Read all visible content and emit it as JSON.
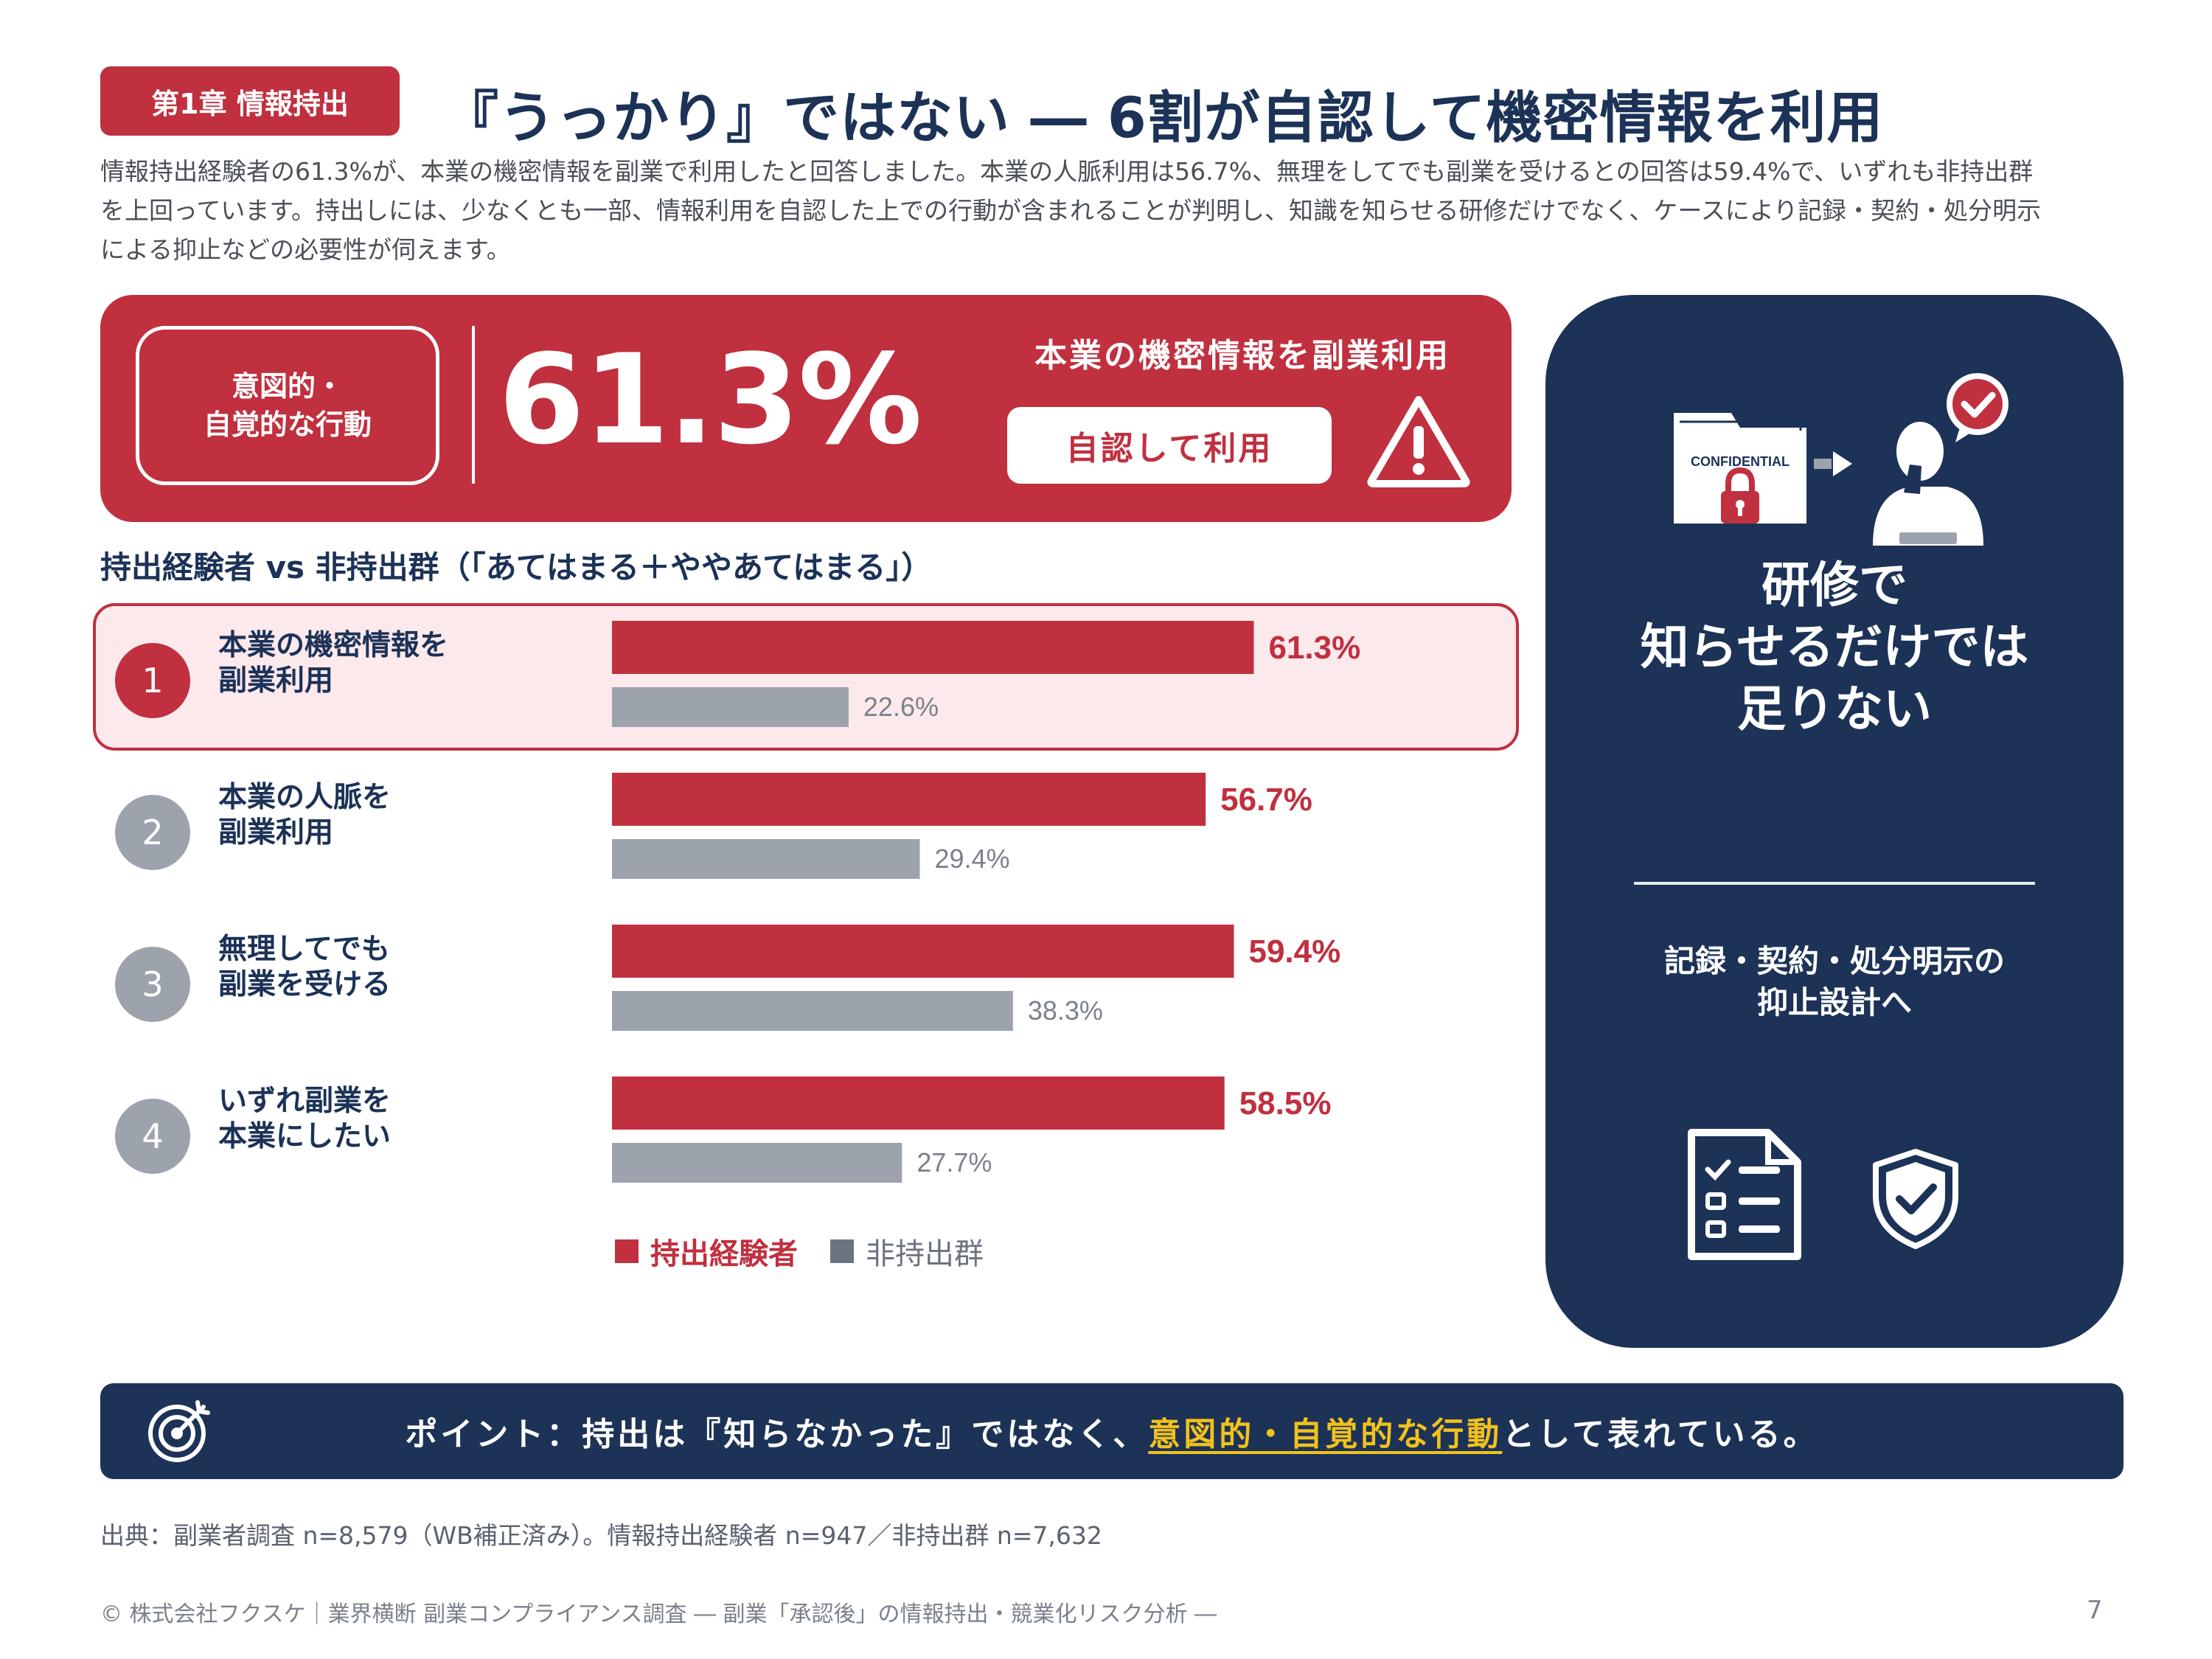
{
  "header": {
    "chapter_tag": "第1章 情報持出",
    "title": "『うっかり』ではない ― 6割が自認して機密情報を利用",
    "lead": "情報持出経験者の61.3%が、本業の機密情報を副業で利用したと回答しました。本業の人脈利用は56.7%、無理をしてでも副業を受けるとの回答は59.4%で、いずれも非持出群を上回っています。持出しには、少なくとも一部、情報利用を自認した上での行動が含まれることが判明し、知識を知らせる研修だけでなく、ケースにより記録・契約・処分明示による抑止などの必要性が伺えます。"
  },
  "hero": {
    "tag": "意図的・\n自覚的な行動",
    "percent": "61.3%",
    "caption": "本業の機密情報を副業利用",
    "pill": "自認して利用",
    "icon": "warning-icon"
  },
  "chart_heading": "持出経験者 vs 非持出群（「あてはまる＋ややあてはまる」）",
  "chart_data": {
    "type": "bar",
    "orientation": "horizontal",
    "categories": [
      "本業の機密情報を\n副業利用",
      "本業の人脈を\n副業利用",
      "無理してでも\n副業を受ける",
      "いずれ副業を\n本業にしたい"
    ],
    "ranks": [
      "1",
      "2",
      "3",
      "4"
    ],
    "highlighted_category": 0,
    "unit": "%",
    "xlim": [
      0,
      100
    ],
    "series": [
      {
        "name": "持出経験者",
        "values": [
          61.3,
          56.7,
          59.4,
          58.5
        ],
        "labels": [
          "61.3%",
          "56.7%",
          "59.4%",
          "58.5%"
        ],
        "color": "#c0303f"
      },
      {
        "name": "非持出群",
        "values": [
          22.6,
          29.4,
          38.3,
          27.7
        ],
        "labels": [
          "22.6%",
          "29.4%",
          "38.3%",
          "27.7%"
        ],
        "color": "#9da3ad"
      }
    ],
    "legend": {
      "position": "bottom",
      "items": [
        "持出経験者",
        "非持出群"
      ]
    }
  },
  "side_card": {
    "illustration_label": "CONFIDENTIAL",
    "headline": "研修で\n知らせるだけでは\n足りない",
    "sub": "記録・契約・処分明示の\n抑止設計へ",
    "icons": [
      "confidential-folder-icon",
      "lock-icon",
      "arrow-right-icon",
      "thinking-person-icon",
      "checkmark-bubble-icon",
      "checklist-document-icon",
      "shield-check-icon"
    ]
  },
  "point": {
    "prefix": "ポイント：持出は『知らなかった』ではなく、",
    "highlight": "意図的・自覚的な行動",
    "suffix": "として表れている。",
    "icon": "target-icon"
  },
  "source": "出典：副業者調査 n=8,579（WB補正済み）。情報持出経験者 n=947／非持出群 n=7,632",
  "footer": "© 株式会社フクスケ｜業界横断 副業コンプライアンス調査 ― 副業「承認後」の情報持出・競業化リスク分析 ―",
  "page_number": "7",
  "colors": {
    "accent_red": "#c0303f",
    "navy": "#1c3257",
    "gray_bar": "#9da3ad",
    "highlight_yellow": "#f2c21b",
    "highlight_row_bg": "#fbe9ec"
  }
}
